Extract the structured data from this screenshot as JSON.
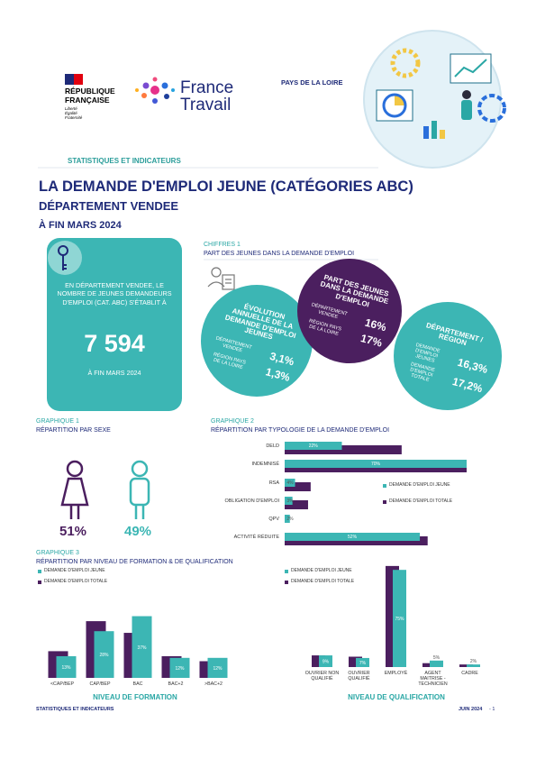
{
  "header": {
    "republic": "RÉPUBLIQUE FRANÇAISE",
    "motto": [
      "Liberté",
      "Égalité",
      "Fraternité"
    ],
    "brand": "France Travail",
    "region": "PAYS DE LA LOIRE",
    "section": "STATISTIQUES ET INDICATEURS"
  },
  "title": "LA DEMANDE D'EMPLOI JEUNE (CATÉGORIES ABC)",
  "subtitle": "DÉPARTEMENT VENDEE",
  "date": "À FIN MARS 2024",
  "key_figure": {
    "text": "EN DÉPARTEMENT VENDEE, LE NOMBRE DE JEUNES DEMANDEURS D'EMPLOI (CAT. ABC) S'ÉTABLIT À",
    "value": "7 594",
    "period": "À FIN MARS 2024"
  },
  "figures": {
    "label": "CHIFFRES 1",
    "title": "PART DES JEUNES DANS LA DEMANDE D'EMPLOI",
    "bubbles": [
      {
        "title": "ÉVOLUTION ANNUELLE DE LA DEMANDE D'EMPLOI JEUNES",
        "rows": [
          {
            "label": "DÉPARTEMENT VENDEE",
            "value": "3,1%"
          },
          {
            "label": "RÉGION PAYS DE LA LOIRE",
            "value": "1,3%"
          }
        ]
      },
      {
        "title": "PART DES JEUNES DANS LA DEMANDE D'EMPLOI",
        "rows": [
          {
            "label": "DÉPARTEMENT VENDEE",
            "value": "16%"
          },
          {
            "label": "RÉGION PAYS DE LA LOIRE",
            "value": "17%"
          }
        ]
      },
      {
        "title": "DÉPARTEMENT / RÉGION",
        "rows": [
          {
            "label": "DEMANDE D'EMPLOI JEUNES",
            "value": "16,3%"
          },
          {
            "label": "DEMANDE D'EMPLOI TOTALE",
            "value": "17,2%"
          }
        ]
      }
    ]
  },
  "sex": {
    "label": "GRAPHIQUE 1",
    "title": "RÉPARTITION PAR SEXE",
    "women": "51%",
    "men": "49%"
  },
  "graph3": {
    "label": "GRAPHIQUE 3",
    "title": "RÉPARTITION PAR NIVEAU DE FORMATION & DE QUALIFICATION"
  },
  "chart_data": [
    {
      "type": "bar",
      "orientation": "horizontal",
      "label": "GRAPHIQUE 2",
      "title": "RÉPARTITION PAR TYPOLOGIE DE LA DEMANDE D'EMPLOI",
      "categories": [
        "DELD",
        "INDEMNISÉ",
        "RSA",
        "OBLIGATION D'EMPLOI",
        "QPV",
        "ACTIVITÉ RÉDUITE"
      ],
      "series": [
        {
          "name": "DEMANDE D'EMPLOI JEUNE",
          "color": "#3cb6b4",
          "values": [
            22,
            70,
            4,
            3,
            2,
            52
          ],
          "value_labels": [
            "22%",
            "70%",
            "4%",
            "3%",
            "2%",
            "52%"
          ]
        },
        {
          "name": "DEMANDE D'EMPLOI TOTALE",
          "color": "#4b1f5f",
          "values": [
            45,
            70,
            10,
            9,
            0,
            55
          ]
        }
      ],
      "xlim": [
        0,
        70
      ]
    },
    {
      "type": "bar",
      "orientation": "vertical",
      "xlabel": "NIVEAU DE FORMATION",
      "categories": [
        "<CAP/BEP",
        "CAP/BEP",
        "BAC",
        "BAC+2",
        ">BAC+2"
      ],
      "series": [
        {
          "name": "DEMANDE D'EMPLOI JEUNE",
          "color": "#3cb6b4",
          "values": [
            13,
            28,
            37,
            12,
            12
          ],
          "value_labels": [
            "13%",
            "28%",
            "37%",
            "12%",
            "12%"
          ]
        },
        {
          "name": "DEMANDE D'EMPLOI TOTALE",
          "color": "#4b1f5f",
          "values": [
            16,
            34,
            27,
            13,
            10
          ]
        }
      ],
      "ylim": [
        0,
        40
      ]
    },
    {
      "type": "bar",
      "orientation": "vertical",
      "xlabel": "NIVEAU DE QUALIFICATION",
      "categories": [
        "OUVRIER NON QUALIFIÉ",
        "OUVRIER QUALIFIÉ",
        "EMPLOYÉ",
        "AGENT MAITRISE - TECHNICIEN",
        "CADRE"
      ],
      "series": [
        {
          "name": "DEMANDE D'EMPLOI JEUNE",
          "color": "#3cb6b4",
          "values": [
            9,
            7,
            75,
            5,
            2
          ],
          "value_labels": [
            "9%",
            "7%",
            "75%",
            "5%",
            "2%"
          ]
        },
        {
          "name": "DEMANDE D'EMPLOI TOTALE",
          "color": "#4b1f5f",
          "values": [
            9,
            8,
            78,
            3,
            2
          ]
        }
      ],
      "ylim": [
        0,
        80
      ]
    }
  ],
  "footer": {
    "left": "STATISTIQUES ET INDICATEURS",
    "date": "JUIN 2024",
    "page": "- 1"
  }
}
